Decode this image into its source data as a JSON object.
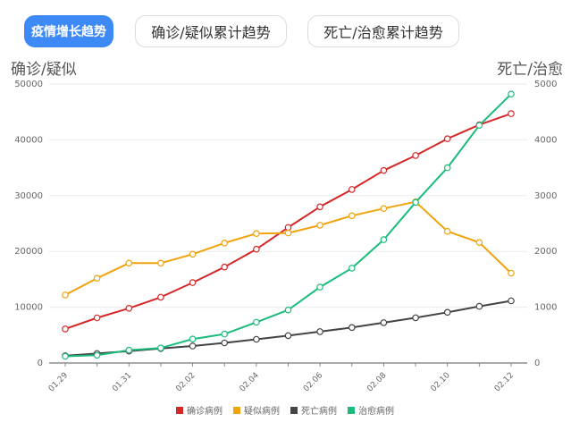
{
  "tabs": [
    {
      "label": "疫情增长趋势",
      "active": true
    },
    {
      "label": "确诊/疑似累计趋势",
      "active": false
    },
    {
      "label": "死亡/治愈累计趋势",
      "active": false
    }
  ],
  "chart_data": {
    "type": "line",
    "title": "",
    "ylabel_left": "确诊/疑似",
    "ylabel_right": "死亡/治愈",
    "ylim_left": [
      0,
      50000
    ],
    "ylim_right": [
      0,
      5000
    ],
    "yticks_left": [
      "0",
      "10000",
      "20000",
      "30000",
      "40000",
      "50000"
    ],
    "yticks_right": [
      "0",
      "1000",
      "2000",
      "3000",
      "4000",
      "5000"
    ],
    "grid": true,
    "legend_position": "bottom",
    "x": [
      "01.29",
      "01.30",
      "01.31",
      "02.01",
      "02.02",
      "02.03",
      "02.04",
      "02.05",
      "02.06",
      "02.07",
      "02.08",
      "02.09",
      "02.10",
      "02.11",
      "02.12"
    ],
    "xtick_labels": [
      "01.29",
      "01.31",
      "02.02",
      "02.04",
      "02.06",
      "02.08",
      "02.10",
      "02.12"
    ],
    "series": [
      {
        "name": "确诊病例",
        "axis": "left",
        "color": "#d62728",
        "values": [
          6100,
          8100,
          9800,
          11800,
          14400,
          17200,
          20400,
          24300,
          28000,
          31100,
          34500,
          37200,
          40200,
          42700,
          44700
        ]
      },
      {
        "name": "疑似病例",
        "axis": "left",
        "color": "#f0a30a",
        "values": [
          12200,
          15200,
          17900,
          17900,
          19500,
          21500,
          23200,
          23300,
          24700,
          26400,
          27700,
          28900,
          23600,
          21600,
          16100
        ]
      },
      {
        "name": "死亡病例",
        "axis": "right",
        "color": "#444444",
        "values": [
          130,
          170,
          213,
          259,
          304,
          361,
          425,
          490,
          563,
          636,
          722,
          811,
          908,
          1016,
          1113
        ]
      },
      {
        "name": "治愈病例",
        "axis": "right",
        "color": "#1bbc7b",
        "values": [
          120,
          140,
          230,
          270,
          430,
          520,
          730,
          950,
          1360,
          1700,
          2210,
          2880,
          3500,
          4260,
          4820
        ]
      }
    ]
  }
}
